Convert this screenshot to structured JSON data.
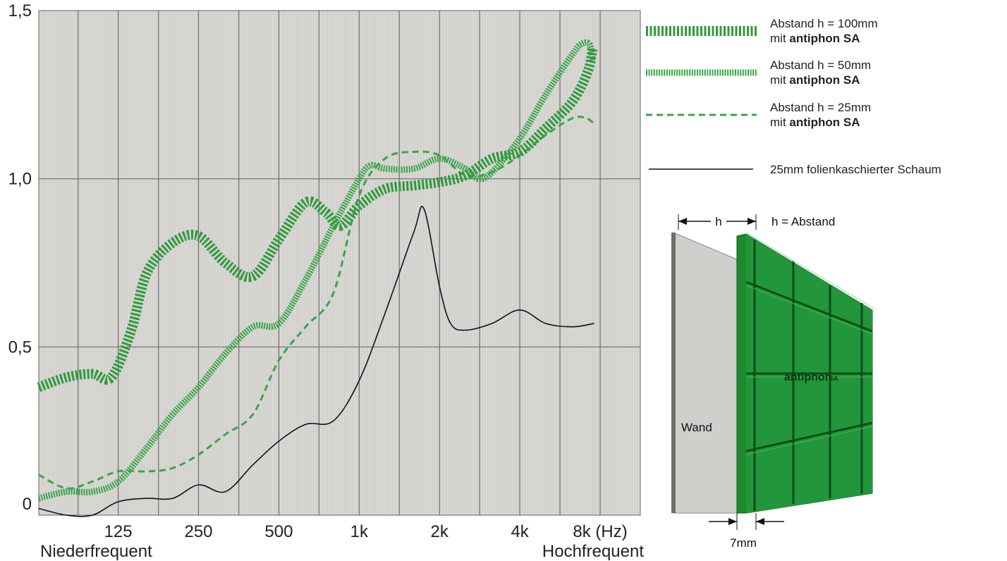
{
  "chart_data": {
    "type": "line",
    "title": "",
    "xlabel": "",
    "ylabel": "",
    "x_scale": "log2",
    "x_ticks": [
      {
        "value": 125,
        "label": "125"
      },
      {
        "value": 250,
        "label": "250"
      },
      {
        "value": 500,
        "label": "500"
      },
      {
        "value": 1000,
        "label": "1k"
      },
      {
        "value": 2000,
        "label": "2k"
      },
      {
        "value": 4000,
        "label": "4k"
      },
      {
        "value": 8000,
        "label": "8k (Hz)"
      }
    ],
    "y_ticks": [
      {
        "value": 0,
        "label": "0"
      },
      {
        "value": 0.5,
        "label": "0,5"
      },
      {
        "value": 1.0,
        "label": "1,0"
      },
      {
        "value": 1.5,
        "label": "1,5"
      }
    ],
    "xlim": [
      63,
      11314
    ],
    "ylim": [
      0,
      1.5
    ],
    "x_note_left": "Niederfrequent",
    "x_note_right": "Hochfrequent",
    "legend_position": "right",
    "series": [
      {
        "name": "Abstand h = 100mm",
        "name_line2_prefix": "mit ",
        "name_line2_bold": "antiphon SA",
        "color": "#2f9a3c",
        "style": "thick-dashed",
        "points": [
          [
            63,
            0.38
          ],
          [
            80,
            0.41
          ],
          [
            100,
            0.42
          ],
          [
            118,
            0.41
          ],
          [
            140,
            0.55
          ],
          [
            160,
            0.72
          ],
          [
            200,
            0.81
          ],
          [
            250,
            0.83
          ],
          [
            315,
            0.75
          ],
          [
            400,
            0.71
          ],
          [
            500,
            0.82
          ],
          [
            630,
            0.93
          ],
          [
            750,
            0.9
          ],
          [
            850,
            0.86
          ],
          [
            1000,
            0.92
          ],
          [
            1250,
            0.97
          ],
          [
            1600,
            0.98
          ],
          [
            2000,
            0.99
          ],
          [
            2500,
            1.01
          ],
          [
            3150,
            1.06
          ],
          [
            4000,
            1.08
          ],
          [
            5000,
            1.15
          ],
          [
            6300,
            1.23
          ],
          [
            7200,
            1.32
          ],
          [
            7500,
            1.39
          ]
        ]
      },
      {
        "name": "Abstand h = 50mm",
        "name_line2_prefix": "mit ",
        "name_line2_bold": "antiphon SA",
        "color": "#3aa548",
        "style": "medium-dashed",
        "points": [
          [
            63,
            0.05
          ],
          [
            80,
            0.07
          ],
          [
            100,
            0.07
          ],
          [
            125,
            0.1
          ],
          [
            160,
            0.2
          ],
          [
            200,
            0.3
          ],
          [
            250,
            0.38
          ],
          [
            315,
            0.48
          ],
          [
            400,
            0.56
          ],
          [
            500,
            0.57
          ],
          [
            630,
            0.7
          ],
          [
            800,
            0.86
          ],
          [
            1000,
            1.0
          ],
          [
            1100,
            1.04
          ],
          [
            1250,
            1.03
          ],
          [
            1600,
            1.03
          ],
          [
            2000,
            1.06
          ],
          [
            2500,
            1.03
          ],
          [
            2800,
            1.0
          ],
          [
            3150,
            1.02
          ],
          [
            4000,
            1.12
          ],
          [
            5000,
            1.25
          ],
          [
            6300,
            1.37
          ],
          [
            6800,
            1.4
          ],
          [
            7300,
            1.4
          ],
          [
            7500,
            1.35
          ]
        ]
      },
      {
        "name": "Abstand h = 25mm",
        "name_line2_prefix": "mit ",
        "name_line2_bold": "antiphon SA",
        "color": "#3aa548",
        "style": "dashed",
        "points": [
          [
            63,
            0.12
          ],
          [
            80,
            0.08
          ],
          [
            100,
            0.1
          ],
          [
            125,
            0.13
          ],
          [
            160,
            0.13
          ],
          [
            200,
            0.14
          ],
          [
            250,
            0.18
          ],
          [
            315,
            0.24
          ],
          [
            400,
            0.3
          ],
          [
            500,
            0.46
          ],
          [
            630,
            0.56
          ],
          [
            800,
            0.66
          ],
          [
            1000,
            0.95
          ],
          [
            1250,
            1.06
          ],
          [
            1600,
            1.08
          ],
          [
            2000,
            1.07
          ],
          [
            2500,
            1.01
          ],
          [
            3150,
            1.02
          ],
          [
            4000,
            1.07
          ],
          [
            5000,
            1.13
          ],
          [
            6300,
            1.18
          ],
          [
            7100,
            1.18
          ],
          [
            7700,
            1.16
          ]
        ]
      },
      {
        "name": "25mm folienkaschierter Schaum",
        "color": "#111111",
        "style": "solid",
        "points": [
          [
            63,
            0.02
          ],
          [
            80,
            0.0
          ],
          [
            100,
            0.0
          ],
          [
            125,
            0.04
          ],
          [
            160,
            0.05
          ],
          [
            200,
            0.05
          ],
          [
            250,
            0.09
          ],
          [
            315,
            0.07
          ],
          [
            400,
            0.15
          ],
          [
            500,
            0.22
          ],
          [
            630,
            0.27
          ],
          [
            800,
            0.28
          ],
          [
            1000,
            0.4
          ],
          [
            1250,
            0.6
          ],
          [
            1600,
            0.84
          ],
          [
            1750,
            0.91
          ],
          [
            2000,
            0.68
          ],
          [
            2200,
            0.57
          ],
          [
            2500,
            0.55
          ],
          [
            3150,
            0.57
          ],
          [
            4000,
            0.61
          ],
          [
            5000,
            0.57
          ],
          [
            6300,
            0.56
          ],
          [
            7600,
            0.57
          ]
        ]
      }
    ]
  },
  "diagram": {
    "h_label": "h",
    "h_caption": "h = Abstand",
    "wall_label": "Wand",
    "panel_label_main": "antiphon",
    "panel_label_sub": "SA",
    "thickness_label": "7mm",
    "wall_color": "#c9c9c6",
    "panel_color": "#1e8a2e"
  }
}
